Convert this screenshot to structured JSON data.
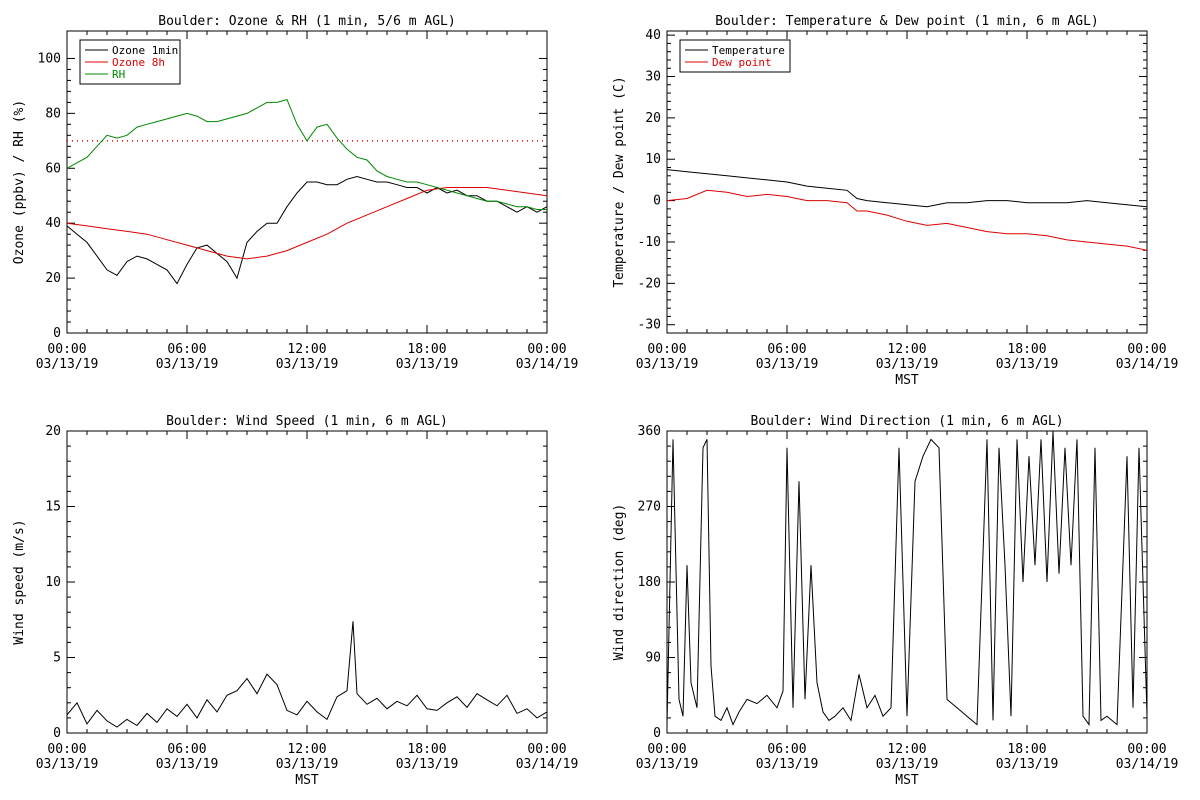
{
  "chart_data": [
    {
      "type": "line",
      "title": "Boulder: Ozone & RH (1 min, 5/6 m AGL)",
      "xlabel": "",
      "ylabel": "Ozone (ppbv) / RH (%)",
      "ylim": [
        0,
        110
      ],
      "yticks": [
        0,
        20,
        40,
        60,
        80,
        100
      ],
      "xlim": [
        0,
        24
      ],
      "xticks": [
        0,
        6,
        12,
        18,
        24
      ],
      "xticklabels": [
        {
          "time": "00:00",
          "date": "03/13/19"
        },
        {
          "time": "06:00",
          "date": "03/13/19"
        },
        {
          "time": "12:00",
          "date": "03/13/19"
        },
        {
          "time": "18:00",
          "date": "03/13/19"
        },
        {
          "time": "00:00",
          "date": "03/14/19"
        }
      ],
      "legend": {
        "position": "top-left",
        "entries": [
          {
            "label": "Ozone 1min",
            "color": "#000000"
          },
          {
            "label": "Ozone 8h",
            "color": "#dd0000"
          },
          {
            "label": "RH",
            "color": "#008800"
          }
        ]
      },
      "reference_line": {
        "y": 70,
        "style": "dotted",
        "color": "#dd0000"
      },
      "series": [
        {
          "name": "Ozone 1min",
          "color": "#000000",
          "x": [
            0,
            0.5,
            1,
            1.5,
            2,
            2.5,
            3,
            3.5,
            4,
            4.5,
            5,
            5.5,
            6,
            6.5,
            7,
            7.5,
            8,
            8.5,
            9,
            9.5,
            10,
            10.5,
            11,
            11.5,
            12,
            12.5,
            13,
            13.5,
            14,
            14.5,
            15,
            15.5,
            16,
            16.5,
            17,
            17.5,
            18,
            18.5,
            19,
            19.5,
            20,
            20.5,
            21,
            21.5,
            22,
            22.5,
            23,
            23.5,
            24
          ],
          "y": [
            39,
            36,
            33,
            28,
            23,
            21,
            26,
            28,
            27,
            25,
            23,
            18,
            25,
            31,
            32,
            29,
            26,
            20,
            33,
            37,
            40,
            40,
            46,
            51,
            55,
            55,
            54,
            54,
            56,
            57,
            56,
            55,
            55,
            54,
            53,
            53,
            51,
            53,
            51,
            52,
            50,
            50,
            48,
            48,
            46,
            44,
            46,
            44,
            46
          ]
        },
        {
          "name": "Ozone 8h",
          "color": "#dd0000",
          "x": [
            0,
            1,
            2,
            3,
            4,
            5,
            6,
            7,
            8,
            9,
            10,
            11,
            12,
            13,
            14,
            15,
            16,
            17,
            18,
            19,
            20,
            21,
            22,
            23,
            24
          ],
          "y": [
            40,
            39,
            38,
            37,
            36,
            34,
            32,
            30,
            28,
            27,
            28,
            30,
            33,
            36,
            40,
            43,
            46,
            49,
            52,
            53,
            53,
            53,
            52,
            51,
            50
          ]
        },
        {
          "name": "RH",
          "color": "#008800",
          "x": [
            0,
            0.5,
            1,
            1.5,
            2,
            2.5,
            3,
            3.5,
            4,
            4.5,
            5,
            5.5,
            6,
            6.5,
            7,
            7.5,
            8,
            8.5,
            9,
            9.5,
            10,
            10.5,
            11,
            11.5,
            12,
            12.5,
            13,
            13.5,
            14,
            14.5,
            15,
            15.5,
            16,
            16.5,
            17,
            17.5,
            18,
            18.5,
            19,
            19.5,
            20,
            20.5,
            21,
            21.5,
            22,
            22.5,
            23,
            23.5,
            24
          ],
          "y": [
            60,
            62,
            64,
            68,
            72,
            71,
            72,
            75,
            76,
            77,
            78,
            79,
            80,
            79,
            77,
            77,
            78,
            79,
            80,
            82,
            84,
            84,
            85,
            76,
            70,
            75,
            76,
            71,
            67,
            64,
            63,
            59,
            57,
            56,
            55,
            55,
            54,
            53,
            52,
            51,
            50,
            49,
            48,
            48,
            47,
            46,
            46,
            45,
            45
          ]
        }
      ]
    },
    {
      "type": "line",
      "title": "Boulder: Temperature & Dew point (1 min, 6 m AGL)",
      "xlabel": "MST",
      "ylabel": "Temperature / Dew point (C)",
      "ylim": [
        -32,
        41
      ],
      "yticks": [
        -30,
        -20,
        -10,
        0,
        10,
        20,
        30,
        40
      ],
      "xlim": [
        0,
        24
      ],
      "xticks": [
        0,
        6,
        12,
        18,
        24
      ],
      "xticklabels": [
        {
          "time": "00:00",
          "date": "03/13/19"
        },
        {
          "time": "06:00",
          "date": "03/13/19"
        },
        {
          "time": "12:00",
          "date": "03/13/19"
        },
        {
          "time": "18:00",
          "date": "03/13/19"
        },
        {
          "time": "00:00",
          "date": "03/14/19"
        }
      ],
      "legend": {
        "position": "top-left",
        "entries": [
          {
            "label": "Temperature",
            "color": "#000000"
          },
          {
            "label": "Dew point",
            "color": "#dd0000"
          }
        ]
      },
      "series": [
        {
          "name": "Temperature",
          "color": "#000000",
          "x": [
            0,
            1,
            2,
            3,
            4,
            5,
            6,
            7,
            8,
            9,
            9.5,
            10,
            11,
            12,
            13,
            14,
            15,
            16,
            17,
            18,
            19,
            20,
            21,
            22,
            23,
            24
          ],
          "y": [
            7.5,
            7,
            6.5,
            6,
            5.5,
            5,
            4.5,
            3.5,
            3,
            2.5,
            0.5,
            0,
            -0.5,
            -1,
            -1.5,
            -0.5,
            -0.5,
            0,
            0,
            -0.5,
            -0.5,
            -0.5,
            0,
            -0.5,
            -1,
            -1.5
          ]
        },
        {
          "name": "Dew point",
          "color": "#dd0000",
          "x": [
            0,
            1,
            2,
            3,
            4,
            5,
            6,
            7,
            8,
            9,
            9.5,
            10,
            11,
            12,
            13,
            14,
            15,
            16,
            17,
            18,
            19,
            20,
            21,
            22,
            23,
            24
          ],
          "y": [
            0,
            0.5,
            2.5,
            2,
            1,
            1.5,
            1,
            0,
            0,
            -0.5,
            -2.5,
            -2.5,
            -3.5,
            -5,
            -6,
            -5.5,
            -6.5,
            -7.5,
            -8,
            -8,
            -8.5,
            -9.5,
            -10,
            -10.5,
            -11,
            -12
          ]
        }
      ]
    },
    {
      "type": "line",
      "title": "Boulder: Wind Speed (1 min, 6 m AGL)",
      "xlabel": "MST",
      "ylabel": "Wind speed (m/s)",
      "ylim": [
        0,
        20
      ],
      "yticks": [
        0,
        5,
        10,
        15,
        20
      ],
      "xlim": [
        0,
        24
      ],
      "xticks": [
        0,
        6,
        12,
        18,
        24
      ],
      "xticklabels": [
        {
          "time": "00:00",
          "date": "03/13/19"
        },
        {
          "time": "06:00",
          "date": "03/13/19"
        },
        {
          "time": "12:00",
          "date": "03/13/19"
        },
        {
          "time": "18:00",
          "date": "03/13/19"
        },
        {
          "time": "00:00",
          "date": "03/14/19"
        }
      ],
      "series": [
        {
          "name": "",
          "color": "#000000",
          "x": [
            0,
            0.5,
            1,
            1.5,
            2,
            2.5,
            3,
            3.5,
            4,
            4.5,
            5,
            5.5,
            6,
            6.5,
            7,
            7.5,
            8,
            8.5,
            9,
            9.5,
            10,
            10.5,
            11,
            11.5,
            12,
            12.5,
            13,
            13.5,
            14,
            14.3,
            14.5,
            15,
            15.5,
            16,
            16.5,
            17,
            17.5,
            18,
            18.5,
            19,
            19.5,
            20,
            20.5,
            21,
            21.5,
            22,
            22.5,
            23,
            23.5,
            24
          ],
          "y": [
            1.2,
            2.0,
            0.6,
            1.5,
            0.8,
            0.4,
            0.9,
            0.5,
            1.3,
            0.7,
            1.6,
            1.1,
            1.9,
            1.0,
            2.2,
            1.4,
            2.5,
            2.8,
            3.6,
            2.6,
            3.9,
            3.2,
            1.5,
            1.2,
            2.1,
            1.4,
            0.9,
            2.4,
            2.8,
            7.4,
            2.6,
            1.9,
            2.3,
            1.6,
            2.1,
            1.8,
            2.5,
            1.6,
            1.5,
            2.0,
            2.4,
            1.7,
            2.6,
            2.2,
            1.8,
            2.5,
            1.3,
            1.6,
            1.0,
            1.4
          ]
        }
      ]
    },
    {
      "type": "line",
      "title": "Boulder: Wind Direction (1 min, 6 m AGL)",
      "xlabel": "MST",
      "ylabel": "Wind direction (deg)",
      "ylim": [
        0,
        360
      ],
      "yticks": [
        0,
        90,
        180,
        270,
        360
      ],
      "xlim": [
        0,
        24
      ],
      "xticks": [
        0,
        6,
        12,
        18,
        24
      ],
      "xticklabels": [
        {
          "time": "00:00",
          "date": "03/13/19"
        },
        {
          "time": "06:00",
          "date": "03/13/19"
        },
        {
          "time": "12:00",
          "date": "03/13/19"
        },
        {
          "time": "18:00",
          "date": "03/13/19"
        },
        {
          "time": "00:00",
          "date": "03/14/19"
        }
      ],
      "series": [
        {
          "name": "",
          "color": "#000000",
          "x": [
            0,
            0.3,
            0.6,
            0.8,
            1.0,
            1.2,
            1.5,
            1.8,
            2.0,
            2.2,
            2.4,
            2.7,
            3.0,
            3.3,
            3.6,
            4.0,
            4.5,
            5.0,
            5.5,
            5.8,
            6.0,
            6.3,
            6.6,
            6.9,
            7.2,
            7.5,
            7.8,
            8.1,
            8.4,
            8.8,
            9.2,
            9.6,
            10.0,
            10.4,
            10.8,
            11.2,
            11.6,
            12.0,
            12.4,
            12.8,
            13.2,
            13.6,
            14.0,
            14.5,
            15.0,
            15.5,
            16.0,
            16.3,
            16.6,
            16.9,
            17.2,
            17.5,
            17.8,
            18.1,
            18.4,
            18.7,
            19.0,
            19.3,
            19.6,
            19.9,
            20.2,
            20.5,
            20.8,
            21.1,
            21.4,
            21.7,
            22.0,
            22.5,
            23.0,
            23.3,
            23.6,
            24.0
          ],
          "y": [
            10,
            350,
            40,
            20,
            200,
            60,
            30,
            340,
            350,
            80,
            20,
            15,
            30,
            10,
            25,
            40,
            35,
            45,
            30,
            50,
            340,
            30,
            300,
            40,
            200,
            60,
            25,
            15,
            20,
            30,
            15,
            70,
            30,
            45,
            20,
            30,
            340,
            20,
            300,
            330,
            350,
            340,
            40,
            30,
            20,
            10,
            350,
            15,
            340,
            200,
            20,
            350,
            180,
            330,
            200,
            350,
            180,
            360,
            190,
            340,
            200,
            350,
            20,
            10,
            340,
            15,
            20,
            10,
            330,
            30,
            340,
            20
          ]
        }
      ]
    }
  ]
}
